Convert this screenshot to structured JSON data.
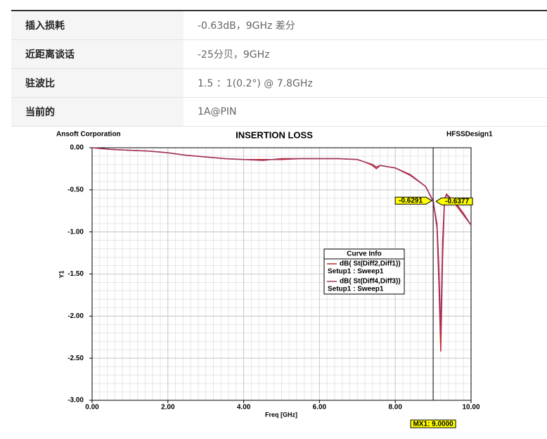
{
  "table": {
    "rows": [
      [
        "插入损耗",
        "-0.63dB，9GHz  差分"
      ],
      [
        "近距离谈话",
        "-25分贝，9GHz"
      ],
      [
        "驻波比",
        "1.5 ：1(0.2°)  @  7.8GHz"
      ],
      [
        "当前的",
        "1A@PIN"
      ]
    ]
  },
  "chart_data": {
    "type": "line",
    "title": "INSERTION LOSS",
    "company": "Ansoft Corporation",
    "design": "HFSSDesign1",
    "x_label": "Freq [GHz]",
    "y_label": "Y1",
    "legend_title": "Curve Info",
    "x": [
      0,
      0.5,
      1,
      1.5,
      2,
      2.5,
      3,
      3.5,
      4,
      4.5,
      5,
      5.5,
      6,
      6.5,
      7,
      7.2,
      7.4,
      7.5,
      7.6,
      8,
      8.4,
      8.8,
      9.0,
      9.1,
      9.15,
      9.2,
      9.25,
      9.3,
      9.35,
      9.6,
      9.8,
      10
    ],
    "series": [
      {
        "name": "dB( St(Diff2,Diff1))",
        "sweep": "Setup1 : Sweep1",
        "color": "#c0282a",
        "values": [
          0,
          -0.02,
          -0.03,
          -0.04,
          -0.06,
          -0.09,
          -0.11,
          -0.13,
          -0.14,
          -0.14,
          -0.14,
          -0.13,
          -0.13,
          -0.13,
          -0.14,
          -0.17,
          -0.21,
          -0.25,
          -0.21,
          -0.24,
          -0.32,
          -0.46,
          -0.63,
          -0.95,
          -1.6,
          -2.42,
          -1.3,
          -0.62,
          -0.55,
          -0.66,
          -0.78,
          -0.92
        ]
      },
      {
        "name": "dB( St(Diff4,Diff3))",
        "sweep": "Setup1 : Sweep1",
        "color": "#a03060",
        "values": [
          0,
          -0.02,
          -0.03,
          -0.04,
          -0.06,
          -0.09,
          -0.11,
          -0.13,
          -0.14,
          -0.15,
          -0.13,
          -0.13,
          -0.13,
          -0.13,
          -0.14,
          -0.17,
          -0.2,
          -0.23,
          -0.21,
          -0.24,
          -0.33,
          -0.46,
          -0.64,
          -0.9,
          -1.4,
          -2.2,
          -1.1,
          -0.6,
          -0.56,
          -0.68,
          -0.8,
          -0.92
        ]
      }
    ],
    "marker": {
      "value": 9,
      "label": "MX1: 9.0000"
    },
    "marker_values": [
      -0.6291,
      -0.6377
    ],
    "xlim": [
      0,
      10
    ],
    "ylim": [
      -3,
      0
    ],
    "xticks": [
      {
        "value": 0,
        "label": "0.00"
      },
      {
        "value": 2,
        "label": "2.00"
      },
      {
        "value": 4,
        "label": "4.00"
      },
      {
        "value": 6,
        "label": "6.00"
      },
      {
        "value": 8,
        "label": "8.00"
      },
      {
        "value": 10,
        "label": "10.00"
      }
    ],
    "yticks": [
      {
        "value": 0,
        "label": "0.00"
      },
      {
        "value": -0.5,
        "label": "-0.50"
      },
      {
        "value": -1,
        "label": "-1.00"
      },
      {
        "value": -1.5,
        "label": "-1.50"
      },
      {
        "value": -2,
        "label": "-2.00"
      },
      {
        "value": -2.5,
        "label": "-2.50"
      },
      {
        "value": -3,
        "label": "-3.00"
      }
    ],
    "grid": true
  }
}
